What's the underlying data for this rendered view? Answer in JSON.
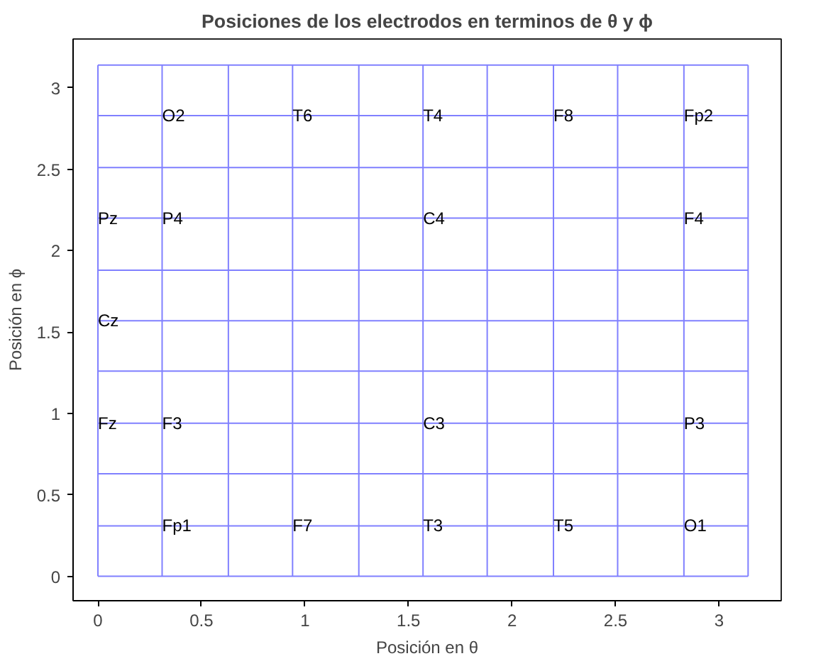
{
  "chart_data": {
    "type": "line",
    "title": "Posiciones de los electrodos en terminos de θ y ϕ",
    "xlabel": "Posición en θ",
    "ylabel": "Posición en ϕ",
    "marker": "none",
    "line_style": "solid",
    "grid": false,
    "xlim": [
      -0.12,
      3.3
    ],
    "ylim": [
      -0.15,
      3.3
    ],
    "xticks": [
      0,
      0.5,
      1,
      1.5,
      2,
      2.5,
      3
    ],
    "yticks": [
      0,
      0.5,
      1,
      1.5,
      2,
      2.5,
      3
    ],
    "series": [
      {
        "color": "#8080ff",
        "x": [
          0,
          0
        ],
        "values": [
          0,
          3.14
        ]
      },
      {
        "color": "#8080ff",
        "x": [
          0.31,
          0.31
        ],
        "values": [
          0,
          3.14
        ]
      },
      {
        "color": "#8080ff",
        "x": [
          0.63,
          0.63
        ],
        "values": [
          0,
          3.14
        ]
      },
      {
        "color": "#8080ff",
        "x": [
          0.94,
          0.94
        ],
        "values": [
          0,
          3.14
        ]
      },
      {
        "color": "#8080ff",
        "x": [
          1.26,
          1.26
        ],
        "values": [
          0,
          3.14
        ]
      },
      {
        "color": "#8080ff",
        "x": [
          1.57,
          1.57
        ],
        "values": [
          0,
          3.14
        ]
      },
      {
        "color": "#8080ff",
        "x": [
          1.88,
          1.88
        ],
        "values": [
          0,
          3.14
        ]
      },
      {
        "color": "#8080ff",
        "x": [
          2.2,
          2.2
        ],
        "values": [
          0,
          3.14
        ]
      },
      {
        "color": "#8080ff",
        "x": [
          2.51,
          2.51
        ],
        "values": [
          0,
          3.14
        ]
      },
      {
        "color": "#8080ff",
        "x": [
          2.83,
          2.83
        ],
        "values": [
          0,
          3.14
        ]
      },
      {
        "color": "#8080ff",
        "x": [
          3.14,
          3.14
        ],
        "values": [
          0,
          3.14
        ]
      },
      {
        "color": "#8080ff",
        "x": [
          0,
          3.14
        ],
        "values": [
          0,
          0
        ]
      },
      {
        "color": "#8080ff",
        "x": [
          0,
          3.14
        ],
        "values": [
          0.31,
          0.31
        ]
      },
      {
        "color": "#8080ff",
        "x": [
          0,
          3.14
        ],
        "values": [
          0.63,
          0.63
        ]
      },
      {
        "color": "#8080ff",
        "x": [
          0,
          3.14
        ],
        "values": [
          0.94,
          0.94
        ]
      },
      {
        "color": "#8080ff",
        "x": [
          0,
          3.14
        ],
        "values": [
          1.26,
          1.26
        ]
      },
      {
        "color": "#8080ff",
        "x": [
          0,
          3.14
        ],
        "values": [
          1.57,
          1.57
        ]
      },
      {
        "color": "#8080ff",
        "x": [
          0,
          3.14
        ],
        "values": [
          1.88,
          1.88
        ]
      },
      {
        "color": "#8080ff",
        "x": [
          0,
          3.14
        ],
        "values": [
          2.2,
          2.2
        ]
      },
      {
        "color": "#8080ff",
        "x": [
          0,
          3.14
        ],
        "values": [
          2.51,
          2.51
        ]
      },
      {
        "color": "#8080ff",
        "x": [
          0,
          3.14
        ],
        "values": [
          2.83,
          2.83
        ]
      },
      {
        "color": "#8080ff",
        "x": [
          0,
          3.14
        ],
        "values": [
          3.14,
          3.14
        ]
      }
    ],
    "annotations": [
      {
        "text": "O2",
        "x": 0.31,
        "y": 2.83
      },
      {
        "text": "T6",
        "x": 0.94,
        "y": 2.83
      },
      {
        "text": "T4",
        "x": 1.57,
        "y": 2.83
      },
      {
        "text": "F8",
        "x": 2.2,
        "y": 2.83
      },
      {
        "text": "Fp2",
        "x": 2.83,
        "y": 2.83
      },
      {
        "text": "Pz",
        "x": 0,
        "y": 2.2
      },
      {
        "text": "P4",
        "x": 0.31,
        "y": 2.2
      },
      {
        "text": "C4",
        "x": 1.57,
        "y": 2.2
      },
      {
        "text": "F4",
        "x": 2.83,
        "y": 2.2
      },
      {
        "text": "Cz",
        "x": 0,
        "y": 1.57
      },
      {
        "text": "Fz",
        "x": 0,
        "y": 0.94
      },
      {
        "text": "F3",
        "x": 0.31,
        "y": 0.94
      },
      {
        "text": "C3",
        "x": 1.57,
        "y": 0.94
      },
      {
        "text": "P3",
        "x": 2.83,
        "y": 0.94
      },
      {
        "text": "Fp1",
        "x": 0.31,
        "y": 0.31
      },
      {
        "text": "F7",
        "x": 0.94,
        "y": 0.31
      },
      {
        "text": "T3",
        "x": 1.57,
        "y": 0.31
      },
      {
        "text": "T5",
        "x": 2.2,
        "y": 0.31
      },
      {
        "text": "O1",
        "x": 2.83,
        "y": 0.31
      }
    ]
  }
}
